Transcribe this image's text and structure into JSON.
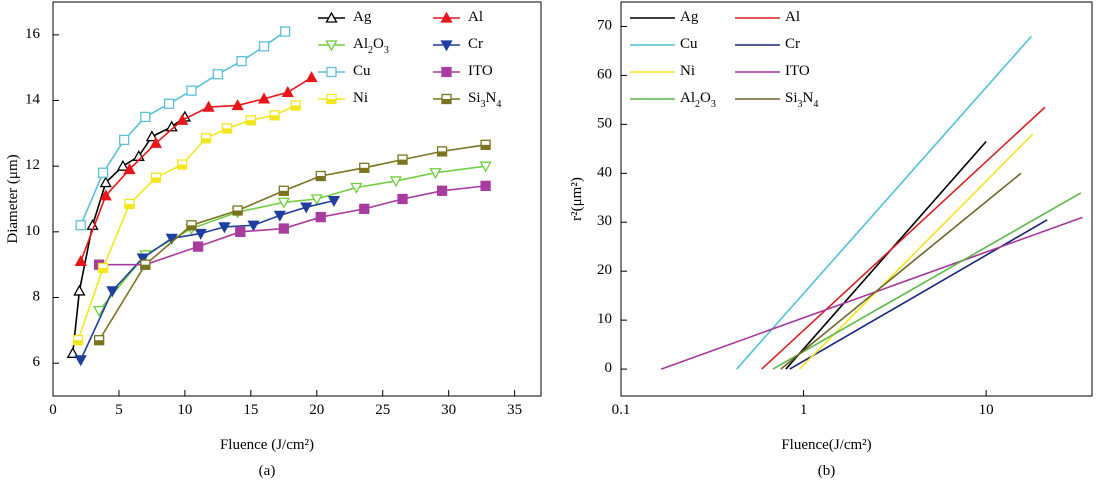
{
  "chart_data": [
    {
      "type": "line",
      "xlabel": "Fluence (J/cm²)",
      "ylabel": "Diameter (μm)",
      "caption": "(a)",
      "xlim": [
        0,
        37
      ],
      "ylim": [
        5,
        17
      ],
      "xticks": [
        0,
        5,
        10,
        15,
        20,
        25,
        30,
        35
      ],
      "yticks": [
        6,
        8,
        10,
        12,
        14,
        16
      ],
      "series": [
        {
          "name": "Ag",
          "color": "#000000",
          "marker": "triangle-up-open",
          "x": [
            1.5,
            2.0,
            3.0,
            4.0,
            5.3,
            6.5,
            7.5,
            9.0,
            10.0
          ],
          "values": [
            6.3,
            8.2,
            10.2,
            11.5,
            12.0,
            12.3,
            12.9,
            13.2,
            13.5
          ]
        },
        {
          "name": "Al",
          "color": "#e8161b",
          "marker": "triangle-up",
          "x": [
            2.1,
            4.0,
            5.8,
            7.8,
            9.8,
            11.8,
            14.0,
            16.0,
            17.8,
            19.6
          ],
          "values": [
            9.1,
            11.1,
            11.9,
            12.7,
            13.4,
            13.8,
            13.85,
            14.05,
            14.25,
            14.7
          ]
        },
        {
          "name": "Al2O3",
          "color": "#6fcf3e",
          "marker": "triangle-down-open",
          "x": [
            3.5,
            7.0,
            10.5,
            14.0,
            17.5,
            20.0,
            23.0,
            26.0,
            29.0,
            32.8
          ],
          "values": [
            7.6,
            9.3,
            10.1,
            10.6,
            10.9,
            11.0,
            11.35,
            11.55,
            11.8,
            12.0
          ]
        },
        {
          "name": "Cr",
          "color": "#1f3f9f",
          "marker": "triangle-down",
          "x": [
            2.1,
            4.5,
            6.8,
            9.0,
            11.2,
            13.0,
            15.2,
            17.2,
            19.2,
            21.3
          ],
          "values": [
            6.1,
            8.2,
            9.2,
            9.8,
            9.95,
            10.15,
            10.2,
            10.5,
            10.75,
            10.95
          ]
        },
        {
          "name": "Cu",
          "color": "#5bc0d8",
          "marker": "square-open",
          "x": [
            2.1,
            3.8,
            5.4,
            7.0,
            8.8,
            10.5,
            12.5,
            14.3,
            16.0,
            17.6
          ],
          "values": [
            10.2,
            11.8,
            12.8,
            13.5,
            13.9,
            14.3,
            14.8,
            15.2,
            15.65,
            16.1
          ]
        },
        {
          "name": "ITO",
          "color": "#a83c9e",
          "marker": "square",
          "x": [
            3.5,
            7.0,
            11.0,
            14.2,
            17.5,
            20.3,
            23.6,
            26.5,
            29.5,
            32.8
          ],
          "values": [
            9.0,
            9.0,
            9.55,
            10.0,
            10.1,
            10.45,
            10.7,
            11.0,
            11.25,
            11.4
          ]
        },
        {
          "name": "Ni",
          "color": "#f2e61f",
          "marker": "square-half",
          "x": [
            1.9,
            3.8,
            5.8,
            7.8,
            9.8,
            11.6,
            13.2,
            15.0,
            16.8,
            18.4
          ],
          "values": [
            6.7,
            8.9,
            10.85,
            11.65,
            12.05,
            12.85,
            13.15,
            13.4,
            13.55,
            13.85
          ]
        },
        {
          "name": "Si3N4",
          "color": "#7a7420",
          "marker": "square-half",
          "x": [
            3.5,
            7.0,
            10.5,
            14.0,
            17.5,
            20.3,
            23.6,
            26.5,
            29.5,
            32.8
          ],
          "values": [
            6.7,
            9.0,
            10.2,
            10.65,
            11.25,
            11.7,
            11.95,
            12.2,
            12.45,
            12.65
          ]
        }
      ]
    },
    {
      "type": "line",
      "xlabel": "Fluence(J/cm²)",
      "ylabel": "r²(μm²)",
      "caption": "(b)",
      "xscale": "log",
      "xlim": [
        0.1,
        38
      ],
      "ylim": [
        -5.5,
        75
      ],
      "xticks": [
        0.1,
        1,
        10
      ],
      "yticks": [
        0,
        10,
        20,
        30,
        40,
        50,
        60,
        70
      ],
      "series": [
        {
          "name": "Ag",
          "color": "#000000",
          "x": [
            0.8,
            10
          ],
          "values": [
            0,
            46.5
          ]
        },
        {
          "name": "Al",
          "color": "#d42020",
          "x": [
            0.59,
            21
          ],
          "values": [
            0,
            53.5
          ]
        },
        {
          "name": "Cu",
          "color": "#4fc1d6",
          "x": [
            0.43,
            17.7
          ],
          "values": [
            0,
            68
          ]
        },
        {
          "name": "Cr",
          "color": "#1a237e",
          "x": [
            0.84,
            21.6
          ],
          "values": [
            0,
            30.5
          ]
        },
        {
          "name": "Ni",
          "color": "#f4e426",
          "x": [
            0.95,
            18
          ],
          "values": [
            0,
            48
          ]
        },
        {
          "name": "ITO",
          "color": "#a6379a",
          "x": [
            0.166,
            33.7
          ],
          "values": [
            0,
            31
          ]
        },
        {
          "name": "Al2O3",
          "color": "#5cb848",
          "x": [
            0.68,
            33
          ],
          "values": [
            0,
            36
          ]
        },
        {
          "name": "Si3N4",
          "color": "#6e6428",
          "x": [
            0.75,
            15.5
          ],
          "values": [
            0,
            40
          ]
        }
      ]
    }
  ]
}
